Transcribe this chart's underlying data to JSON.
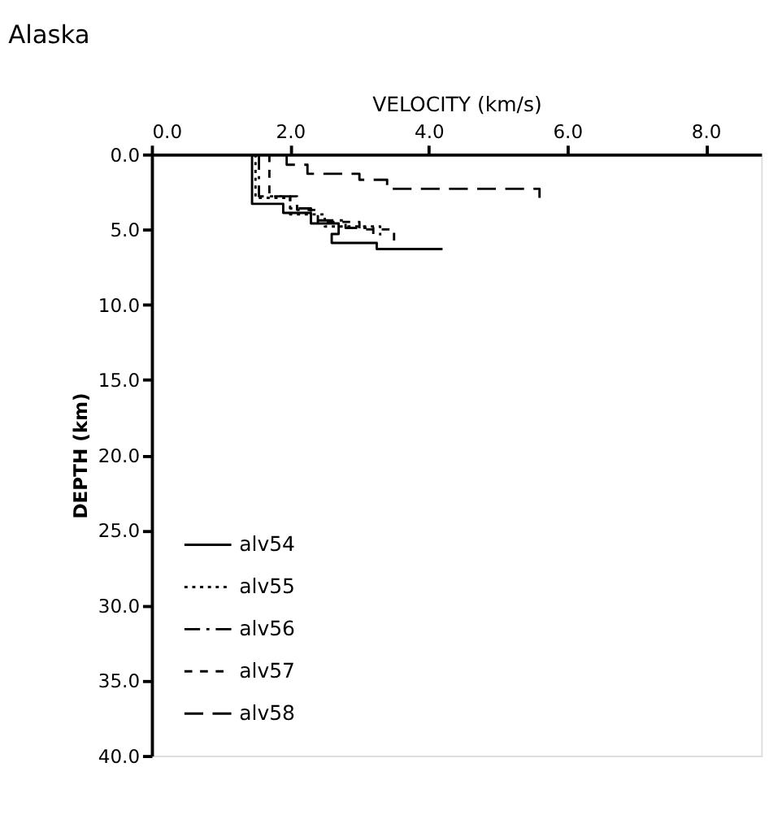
{
  "chart_data": {
    "type": "step",
    "title": "Alaska",
    "xlabel": "VELOCITY (km/s)",
    "ylabel": "DEPTH (km)",
    "xlim": [
      0,
      8.8
    ],
    "ylim": [
      40,
      0
    ],
    "xticks": [
      {
        "value": 0,
        "label": "0.0"
      },
      {
        "value": 2,
        "label": "2.0"
      },
      {
        "value": 4,
        "label": "4.0"
      },
      {
        "value": 6,
        "label": "6.0"
      },
      {
        "value": 8,
        "label": "8.0"
      }
    ],
    "yticks": [
      {
        "value": 0,
        "label": "0.0"
      },
      {
        "value": 5,
        "label": "5.0"
      },
      {
        "value": 10,
        "label": "10.0"
      },
      {
        "value": 15,
        "label": "15.0"
      },
      {
        "value": 20,
        "label": "20.0"
      },
      {
        "value": 25,
        "label": "25.0"
      },
      {
        "value": 30,
        "label": "30.0"
      },
      {
        "value": 35,
        "label": "35.0"
      },
      {
        "value": 40,
        "label": "40.0"
      }
    ],
    "grid": false,
    "legend": "bottom left",
    "series": [
      {
        "name": "alv54",
        "color": "#000000",
        "line_style": "solid",
        "x": [
          1.45,
          1.45,
          1.9,
          1.9,
          2.3,
          2.3,
          2.7,
          2.7,
          2.6,
          2.6,
          3.25,
          3.25,
          4.2
        ],
        "values": [
          0,
          3.3,
          3.3,
          3.9,
          3.9,
          4.6,
          4.6,
          5.3,
          5.3,
          5.9,
          5.9,
          6.3,
          6.3
        ]
      },
      {
        "name": "alv55",
        "color": "#000000",
        "line_style": "dotted",
        "x": [
          1.5,
          1.5,
          2.0,
          2.0,
          2.5,
          2.5,
          3.3,
          3.3
        ],
        "values": [
          0,
          2.9,
          2.9,
          4.0,
          4.0,
          4.8,
          4.8,
          5.4
        ]
      },
      {
        "name": "alv56",
        "color": "#000000",
        "line_style": "dashdot",
        "x": [
          1.55,
          1.55,
          2.0,
          2.0,
          2.3,
          2.3,
          2.8,
          2.8,
          3.2,
          3.2
        ],
        "values": [
          0,
          2.8,
          2.8,
          3.6,
          3.6,
          4.4,
          4.4,
          4.9,
          4.9,
          5.3
        ]
      },
      {
        "name": "alv57",
        "color": "#000000",
        "line_style": "dashed",
        "x": [
          1.7,
          1.7,
          2.1,
          2.1,
          2.4,
          2.4,
          3.0,
          3.0,
          3.5,
          3.5
        ],
        "values": [
          0,
          2.8,
          2.8,
          3.7,
          3.7,
          4.5,
          4.5,
          5.0,
          5.0,
          5.9
        ]
      },
      {
        "name": "alv58",
        "color": "#000000",
        "line_style": "longdash",
        "x": [
          1.95,
          1.95,
          2.25,
          2.25,
          3.0,
          3.0,
          3.4,
          3.4,
          5.6,
          5.6
        ],
        "values": [
          0,
          0.7,
          0.7,
          1.3,
          1.3,
          1.7,
          1.7,
          2.3,
          2.3,
          2.9
        ]
      }
    ]
  }
}
